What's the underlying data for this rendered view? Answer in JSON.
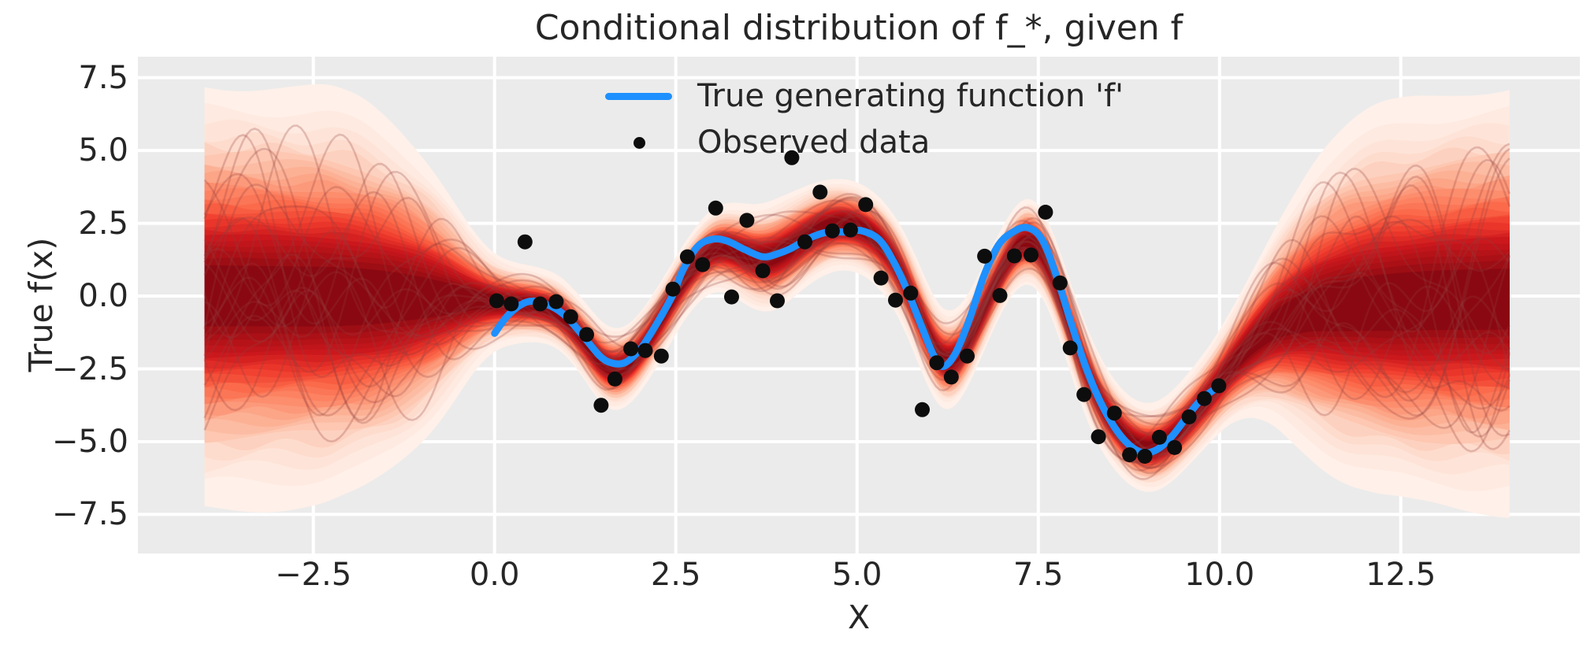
{
  "title": "Conditional distribution of f_*, given f",
  "axes": {
    "xlabel": "X",
    "ylabel": "True f(x)",
    "xlim": [
      -4.92,
      14.97
    ],
    "ylim": [
      -8.84,
      8.22
    ],
    "xticks": [
      {
        "value": -2.5,
        "label": "−2.5"
      },
      {
        "value": 0.0,
        "label": "0.0"
      },
      {
        "value": 2.5,
        "label": "2.5"
      },
      {
        "value": 5.0,
        "label": "5.0"
      },
      {
        "value": 7.5,
        "label": "7.5"
      },
      {
        "value": 10.0,
        "label": "10.0"
      },
      {
        "value": 12.5,
        "label": "12.5"
      }
    ],
    "yticks": [
      {
        "value": 7.5,
        "label": "7.5"
      },
      {
        "value": 5.0,
        "label": "5.0"
      },
      {
        "value": 2.5,
        "label": "2.5"
      },
      {
        "value": 0.0,
        "label": "0.0"
      },
      {
        "value": -2.5,
        "label": "−2.5"
      },
      {
        "value": -5.0,
        "label": "−5.0"
      },
      {
        "value": -7.5,
        "label": "−7.5"
      }
    ]
  },
  "legend": {
    "items": [
      {
        "label": "True generating function 'f'",
        "marker": "line",
        "color": "#1e90ff"
      },
      {
        "label": "Observed data",
        "marker": "dot",
        "color": "#0d0d0d"
      }
    ]
  },
  "colors": {
    "figure_bg": "#ffffff",
    "plot_bg": "#ebebeb",
    "grid": "#ffffff",
    "text": "#262626",
    "true_function": "#1e90ff",
    "observed": "#0d0d0d",
    "sample_line": "rgba(146,63,63,0.26)"
  },
  "chart_data": {
    "type": "line",
    "title": "Conditional distribution of f_*, given f",
    "xlabel": "X",
    "ylabel": "True f(x)",
    "xlim": [
      -4.92,
      14.97
    ],
    "ylim": [
      -8.84,
      8.22
    ],
    "grid": true,
    "legend_position": "upper center",
    "true_function": {
      "name": "True generating function 'f'",
      "color": "#1e90ff",
      "line_width": 9,
      "points": [
        [
          0.0,
          -1.28
        ],
        [
          0.2,
          -0.62
        ],
        [
          0.45,
          -0.2
        ],
        [
          0.7,
          -0.27
        ],
        [
          0.95,
          -0.62
        ],
        [
          1.2,
          -1.3
        ],
        [
          1.45,
          -2.05
        ],
        [
          1.62,
          -2.3
        ],
        [
          1.8,
          -2.28
        ],
        [
          2.0,
          -1.85
        ],
        [
          2.2,
          -1.1
        ],
        [
          2.45,
          0.0
        ],
        [
          2.6,
          0.9
        ],
        [
          2.8,
          1.7
        ],
        [
          3.0,
          1.95
        ],
        [
          3.2,
          1.9
        ],
        [
          3.45,
          1.6
        ],
        [
          3.7,
          1.35
        ],
        [
          3.9,
          1.45
        ],
        [
          4.1,
          1.65
        ],
        [
          4.35,
          2.0
        ],
        [
          4.6,
          2.2
        ],
        [
          4.85,
          2.2
        ],
        [
          5.05,
          2.25
        ],
        [
          5.3,
          1.95
        ],
        [
          5.5,
          1.2
        ],
        [
          5.7,
          0.15
        ],
        [
          5.9,
          -1.1
        ],
        [
          6.05,
          -2.0
        ],
        [
          6.18,
          -2.42
        ],
        [
          6.35,
          -2.0
        ],
        [
          6.55,
          -0.8
        ],
        [
          6.75,
          0.7
        ],
        [
          6.95,
          1.75
        ],
        [
          7.15,
          2.2
        ],
        [
          7.35,
          2.35
        ],
        [
          7.55,
          1.95
        ],
        [
          7.75,
          0.7
        ],
        [
          7.95,
          -0.9
        ],
        [
          8.15,
          -2.4
        ],
        [
          8.35,
          -3.6
        ],
        [
          8.55,
          -4.5
        ],
        [
          8.75,
          -5.1
        ],
        [
          8.95,
          -5.38
        ],
        [
          9.15,
          -5.25
        ],
        [
          9.35,
          -4.8
        ],
        [
          9.55,
          -4.15
        ],
        [
          9.75,
          -3.55
        ],
        [
          10.0,
          -3.08
        ]
      ]
    },
    "observed": {
      "name": "Observed data",
      "color": "#0d0d0d",
      "marker_radius": 9.5,
      "points": [
        [
          0.03,
          -0.16
        ],
        [
          0.23,
          -0.27
        ],
        [
          0.42,
          1.86
        ],
        [
          0.63,
          -0.27
        ],
        [
          0.85,
          -0.19
        ],
        [
          1.05,
          -0.71
        ],
        [
          1.27,
          -1.32
        ],
        [
          1.47,
          -3.75
        ],
        [
          1.66,
          -2.85
        ],
        [
          1.88,
          -1.81
        ],
        [
          2.08,
          -1.87
        ],
        [
          2.3,
          -2.06
        ],
        [
          2.46,
          0.24
        ],
        [
          2.66,
          1.35
        ],
        [
          2.87,
          1.08
        ],
        [
          3.05,
          3.02
        ],
        [
          3.27,
          -0.03
        ],
        [
          3.48,
          2.6
        ],
        [
          3.7,
          0.87
        ],
        [
          3.9,
          -0.16
        ],
        [
          4.1,
          4.75
        ],
        [
          4.28,
          1.86
        ],
        [
          4.49,
          3.57
        ],
        [
          4.66,
          2.24
        ],
        [
          4.91,
          2.27
        ],
        [
          5.12,
          3.14
        ],
        [
          5.33,
          0.62
        ],
        [
          5.53,
          -0.14
        ],
        [
          5.74,
          0.1
        ],
        [
          5.9,
          -3.9
        ],
        [
          6.1,
          -2.29
        ],
        [
          6.3,
          -2.78
        ],
        [
          6.52,
          -2.06
        ],
        [
          6.76,
          1.37
        ],
        [
          6.97,
          0.02
        ],
        [
          7.17,
          1.38
        ],
        [
          7.4,
          1.41
        ],
        [
          7.6,
          2.88
        ],
        [
          7.8,
          0.45
        ],
        [
          7.94,
          -1.78
        ],
        [
          8.13,
          -3.38
        ],
        [
          8.33,
          -4.83
        ],
        [
          8.55,
          -4.02
        ],
        [
          8.76,
          -5.45
        ],
        [
          8.97,
          -5.5
        ],
        [
          9.17,
          -4.85
        ],
        [
          9.38,
          -5.2
        ],
        [
          9.58,
          -4.15
        ],
        [
          9.79,
          -3.52
        ],
        [
          9.99,
          -3.08
        ]
      ]
    },
    "posterior_density": {
      "description": "shaded conditional density of f_* (Reds colormap), wide prior outside observed range x in [0,10], pinched around posterior mean inside",
      "x_range": [
        -4,
        14
      ],
      "levels": 26,
      "level_range": [
        0.03,
        0.93
      ],
      "colormap_stops": [
        [
          0.0,
          [
            255,
            245,
            240
          ]
        ],
        [
          0.125,
          [
            254,
            224,
            210
          ]
        ],
        [
          0.25,
          [
            252,
            187,
            161
          ]
        ],
        [
          0.375,
          [
            252,
            146,
            114
          ]
        ],
        [
          0.5,
          [
            251,
            106,
            74
          ]
        ],
        [
          0.625,
          [
            239,
            59,
            44
          ]
        ],
        [
          0.75,
          [
            203,
            24,
            29
          ]
        ],
        [
          0.875,
          [
            165,
            15,
            21
          ]
        ],
        [
          1.0,
          [
            103,
            0,
            13
          ]
        ]
      ],
      "center": [
        [
          -4,
          0
        ],
        [
          -3,
          0
        ],
        [
          -2,
          -0.02
        ],
        [
          -1.2,
          -0.05
        ],
        [
          -0.6,
          -0.1
        ],
        [
          -0.2,
          -0.15
        ],
        [
          0,
          -0.2
        ],
        [
          0.3,
          -0.25
        ],
        [
          0.6,
          -0.3
        ],
        [
          0.9,
          -0.55
        ],
        [
          1.2,
          -1.4
        ],
        [
          1.5,
          -2.45
        ],
        [
          1.7,
          -2.6
        ],
        [
          1.9,
          -2.3
        ],
        [
          2.1,
          -1.6
        ],
        [
          2.35,
          -0.6
        ],
        [
          2.6,
          0.5
        ],
        [
          2.85,
          1.3
        ],
        [
          3.05,
          1.7
        ],
        [
          3.3,
          1.6
        ],
        [
          3.6,
          1.25
        ],
        [
          3.85,
          1.3
        ],
        [
          4.1,
          1.7
        ],
        [
          4.4,
          2.2
        ],
        [
          4.7,
          2.5
        ],
        [
          5.0,
          2.45
        ],
        [
          5.3,
          1.95
        ],
        [
          5.6,
          0.9
        ],
        [
          5.9,
          -0.9
        ],
        [
          6.15,
          -2.35
        ],
        [
          6.4,
          -2.2
        ],
        [
          6.65,
          -1.0
        ],
        [
          6.9,
          0.4
        ],
        [
          7.1,
          1.4
        ],
        [
          7.3,
          2.0
        ],
        [
          7.5,
          1.85
        ],
        [
          7.7,
          0.8
        ],
        [
          7.95,
          -1.1
        ],
        [
          8.2,
          -2.9
        ],
        [
          8.5,
          -4.3
        ],
        [
          8.8,
          -5.1
        ],
        [
          9.05,
          -5.3
        ],
        [
          9.3,
          -5.0
        ],
        [
          9.6,
          -4.2
        ],
        [
          9.9,
          -3.3
        ],
        [
          10.1,
          -2.6
        ],
        [
          10.45,
          -1.6
        ],
        [
          10.8,
          -0.9
        ],
        [
          11.3,
          -0.45
        ],
        [
          12,
          -0.25
        ],
        [
          13,
          -0.15
        ],
        [
          14,
          -0.1
        ]
      ],
      "halfwidth": [
        [
          -4,
          7.3
        ],
        [
          -3,
          7.2
        ],
        [
          -2.3,
          7.1
        ],
        [
          -1.8,
          6.7
        ],
        [
          -1.4,
          6.0
        ],
        [
          -1.0,
          5.0
        ],
        [
          -0.7,
          4.0
        ],
        [
          -0.4,
          2.8
        ],
        [
          -0.2,
          2.1
        ],
        [
          0,
          1.6
        ],
        [
          0.3,
          1.35
        ],
        [
          0.7,
          1.25
        ],
        [
          1.1,
          1.3
        ],
        [
          1.5,
          1.45
        ],
        [
          1.9,
          1.4
        ],
        [
          2.3,
          1.35
        ],
        [
          2.7,
          1.3
        ],
        [
          3.1,
          1.45
        ],
        [
          3.5,
          1.75
        ],
        [
          3.9,
          1.95
        ],
        [
          4.3,
          1.75
        ],
        [
          4.7,
          1.6
        ],
        [
          5.1,
          1.55
        ],
        [
          5.5,
          1.6
        ],
        [
          5.9,
          1.75
        ],
        [
          6.2,
          1.7
        ],
        [
          6.6,
          1.55
        ],
        [
          7.0,
          1.45
        ],
        [
          7.4,
          1.5
        ],
        [
          7.8,
          1.55
        ],
        [
          8.2,
          1.6
        ],
        [
          8.6,
          1.5
        ],
        [
          9.0,
          1.5
        ],
        [
          9.4,
          1.55
        ],
        [
          9.8,
          1.65
        ],
        [
          10.1,
          1.85
        ],
        [
          10.4,
          2.4
        ],
        [
          10.7,
          3.2
        ],
        [
          11.0,
          4.2
        ],
        [
          11.4,
          5.4
        ],
        [
          11.8,
          6.2
        ],
        [
          12.2,
          6.7
        ],
        [
          12.7,
          7.0
        ],
        [
          13.3,
          7.2
        ],
        [
          14,
          7.3
        ]
      ]
    },
    "samples": {
      "count": 22,
      "color": "rgba(146,63,63,0.26)",
      "line_width": 2.6
    }
  }
}
